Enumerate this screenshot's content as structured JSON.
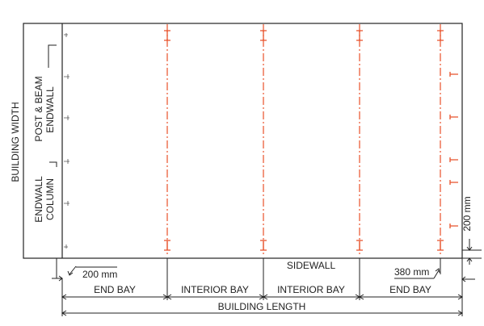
{
  "labels": {
    "building_width": "BUILDING WIDTH",
    "post_beam": "POST & BEAM",
    "endwall_top": "ENDWALL",
    "endwall_bottom": "ENDWALL",
    "column": "COLUMN",
    "sidewall": "SIDEWALL",
    "dim_200_bottom": "200 mm",
    "dim_380": "380 mm",
    "dim_200_right": "200 mm",
    "end_bay_left": "END BAY",
    "interior_bay_1": "INTERIOR BAY",
    "interior_bay_2": "INTERIOR BAY",
    "end_bay_right": "END BAY",
    "building_length": "BUILDING LENGTH"
  },
  "colors": {
    "gridline": "#e8512a",
    "linework": "#222222",
    "text": "#1f1f1f"
  }
}
